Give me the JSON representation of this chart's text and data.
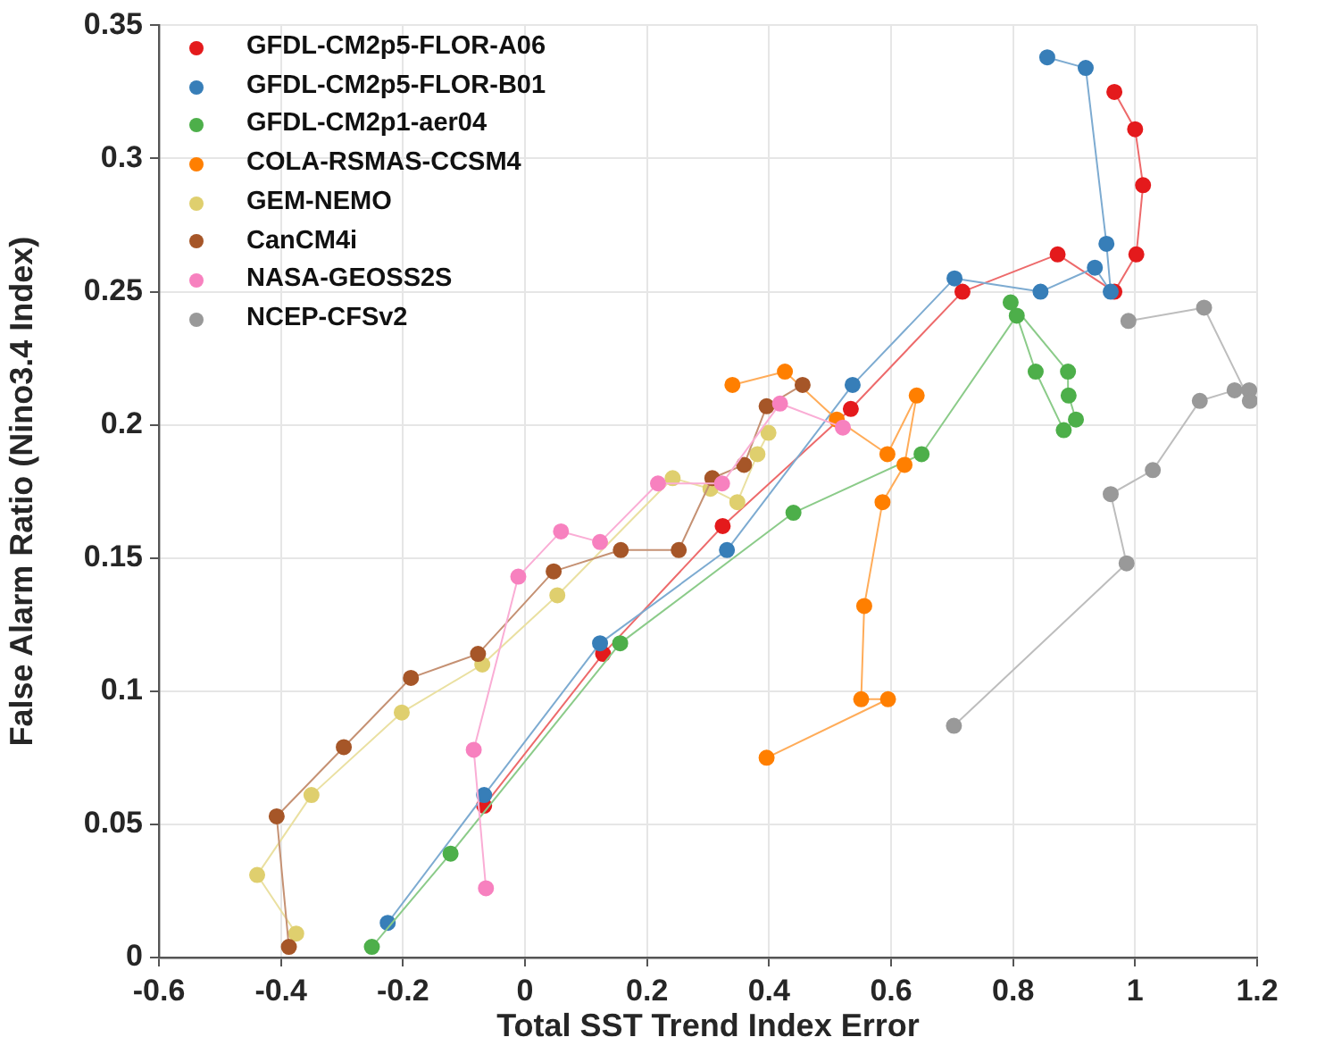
{
  "chart_data": {
    "type": "line",
    "xlabel": "Total SST Trend Index Error",
    "ylabel": "False Alarm Ratio (Nino3.4 Index)",
    "xlim": [
      -0.6,
      1.2
    ],
    "xticks": [
      -0.6,
      -0.4,
      -0.2,
      0,
      0.2,
      0.4,
      0.6,
      0.8,
      1,
      1.2
    ],
    "ylim": [
      0,
      0.35
    ],
    "yticks": [
      0,
      0.05,
      0.1,
      0.15,
      0.2,
      0.25,
      0.3,
      0.35
    ],
    "grid": true,
    "legend": "top left",
    "marker": "circle",
    "line_style": "solid",
    "series": [
      {
        "name": "GFDL-CM2p5-FLOR-A06",
        "color": "#e41a1c",
        "x": [
          -0.067,
          0.128,
          0.324,
          0.534,
          0.717,
          0.873,
          0.966,
          1.002,
          1.013,
          1.0,
          0.966
        ],
        "values": [
          0.057,
          0.114,
          0.162,
          0.206,
          0.25,
          0.264,
          0.25,
          0.264,
          0.29,
          0.311,
          0.325
        ]
      },
      {
        "name": "GFDL-CM2p5-FLOR-B01",
        "color": "#377eb8",
        "x": [
          -0.225,
          -0.067,
          0.123,
          0.331,
          0.537,
          0.704,
          0.845,
          0.934,
          0.96,
          0.953,
          0.919,
          0.856
        ],
        "values": [
          0.013,
          0.061,
          0.118,
          0.153,
          0.215,
          0.255,
          0.25,
          0.259,
          0.25,
          0.268,
          0.334,
          0.338
        ]
      },
      {
        "name": "GFDL-CM2p1-aer04",
        "color": "#4daf4a",
        "x": [
          -0.251,
          -0.122,
          0.156,
          0.44,
          0.65,
          0.806,
          0.837,
          0.883,
          0.903,
          0.891,
          0.89,
          0.796
        ],
        "values": [
          0.004,
          0.039,
          0.118,
          0.167,
          0.189,
          0.241,
          0.22,
          0.198,
          0.202,
          0.211,
          0.22,
          0.246
        ]
      },
      {
        "name": "COLA-RSMAS-CCSM4",
        "color": "#ff7f00",
        "x": [
          0.34,
          0.426,
          0.511,
          0.594,
          0.642,
          0.622,
          0.586,
          0.556,
          0.551,
          0.595,
          0.396
        ],
        "values": [
          0.215,
          0.22,
          0.202,
          0.189,
          0.211,
          0.185,
          0.171,
          0.132,
          0.097,
          0.097,
          0.075
        ]
      },
      {
        "name": "GEM-NEMO",
        "color": "#dfcf6e",
        "x": [
          -0.375,
          -0.439,
          -0.35,
          -0.202,
          -0.07,
          0.053,
          0.242,
          0.304,
          0.348,
          0.381,
          0.399
        ],
        "values": [
          0.009,
          0.031,
          0.061,
          0.092,
          0.11,
          0.136,
          0.18,
          0.176,
          0.171,
          0.189,
          0.197
        ]
      },
      {
        "name": "CanCM4i",
        "color": "#a65628",
        "x": [
          -0.387,
          -0.407,
          -0.297,
          -0.187,
          -0.077,
          0.047,
          0.157,
          0.252,
          0.307,
          0.359,
          0.396,
          0.455
        ],
        "values": [
          0.004,
          0.053,
          0.079,
          0.105,
          0.114,
          0.145,
          0.153,
          0.153,
          0.18,
          0.185,
          0.207,
          0.215
        ]
      },
      {
        "name": "NASA-GEOSS2S",
        "color": "#f781bf",
        "x": [
          -0.064,
          -0.084,
          -0.011,
          0.059,
          0.123,
          0.218,
          0.323,
          0.418,
          0.521
        ],
        "values": [
          0.026,
          0.078,
          0.143,
          0.16,
          0.156,
          0.178,
          0.178,
          0.208,
          0.199
        ]
      },
      {
        "name": "NCEP-CFSv2",
        "color": "#999999",
        "x": [
          0.703,
          0.986,
          0.96,
          1.029,
          1.106,
          1.163,
          1.187,
          1.188,
          1.113,
          0.989
        ],
        "values": [
          0.087,
          0.148,
          0.174,
          0.183,
          0.209,
          0.213,
          0.213,
          0.209,
          0.244,
          0.239
        ]
      }
    ]
  }
}
